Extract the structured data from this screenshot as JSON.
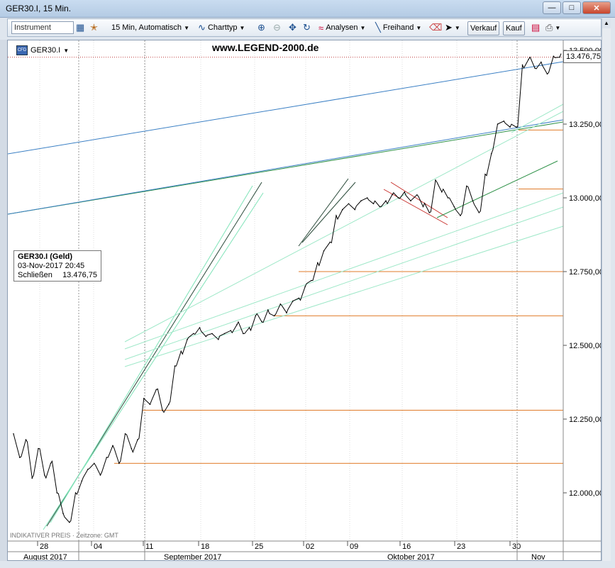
{
  "window": {
    "title": "GER30.I, 15 Min."
  },
  "toolbar": {
    "instrument_placeholder": "Instrument",
    "interval_label": "15 Min,  Automatisch",
    "charttype_label": "Charttyp",
    "analysen_label": "Analysen",
    "freihand_label": "Freihand",
    "verkauf_label": "Verkauf",
    "kauf_label": "Kauf"
  },
  "chart": {
    "symbol": "GER30.I",
    "watermark": "www.LEGEND-2000.de",
    "legend": {
      "title": "GER30.I (Geld)",
      "datetime": "03-Nov-2017 20:45",
      "close_label": "Schließen",
      "close_value": "13.476,75"
    },
    "last_price": "13.476,75",
    "footnote": "INDIKATIVER PREIS · Zeitzone: GMT"
  },
  "chart_data": {
    "type": "line",
    "y_ticks": [
      "12.000,00",
      "12.250,00",
      "12.500,00",
      "12.750,00",
      "13.000,00",
      "13.250,00",
      "13.500,00"
    ],
    "y_tick_values": [
      12000,
      12250,
      12500,
      12750,
      13000,
      13250,
      13500
    ],
    "ylim": [
      11850,
      13550
    ],
    "x_day_ticks": [
      "28",
      "04",
      "11",
      "18",
      "25",
      "02",
      "09",
      "16",
      "23",
      "30"
    ],
    "x_month_labels": [
      "August 2017",
      "September 2017",
      "Oktober 2017",
      "Nov"
    ],
    "series": [
      {
        "values": [
          12200,
          12120,
          12180,
          12050,
          12150,
          12060,
          12100,
          12000,
          11930,
          11900,
          12000,
          12040,
          12080,
          12100,
          12060,
          12120,
          12160,
          12100,
          12200,
          12150,
          12180,
          12320,
          12300,
          12350,
          12280,
          12300,
          12430,
          12480,
          12520,
          12540,
          12560,
          12530,
          12540,
          12520,
          12540,
          12550,
          12570,
          12540,
          12560,
          12600,
          12580,
          12620,
          12600,
          12640,
          12610,
          12650,
          12660,
          12700,
          12720,
          12780,
          12820,
          12850,
          12940,
          12960,
          12980,
          12960,
          12990,
          13000,
          12980,
          12970,
          12990,
          13010,
          13000,
          13020,
          12990,
          13010,
          12970,
          12950,
          13060,
          13020,
          13000,
          12970,
          12940,
          13040,
          12990,
          12950,
          13080,
          13150,
          13250,
          13260,
          13240,
          13240,
          13450,
          13470,
          13440,
          13460,
          13420,
          13480,
          13477
        ]
      }
    ]
  }
}
